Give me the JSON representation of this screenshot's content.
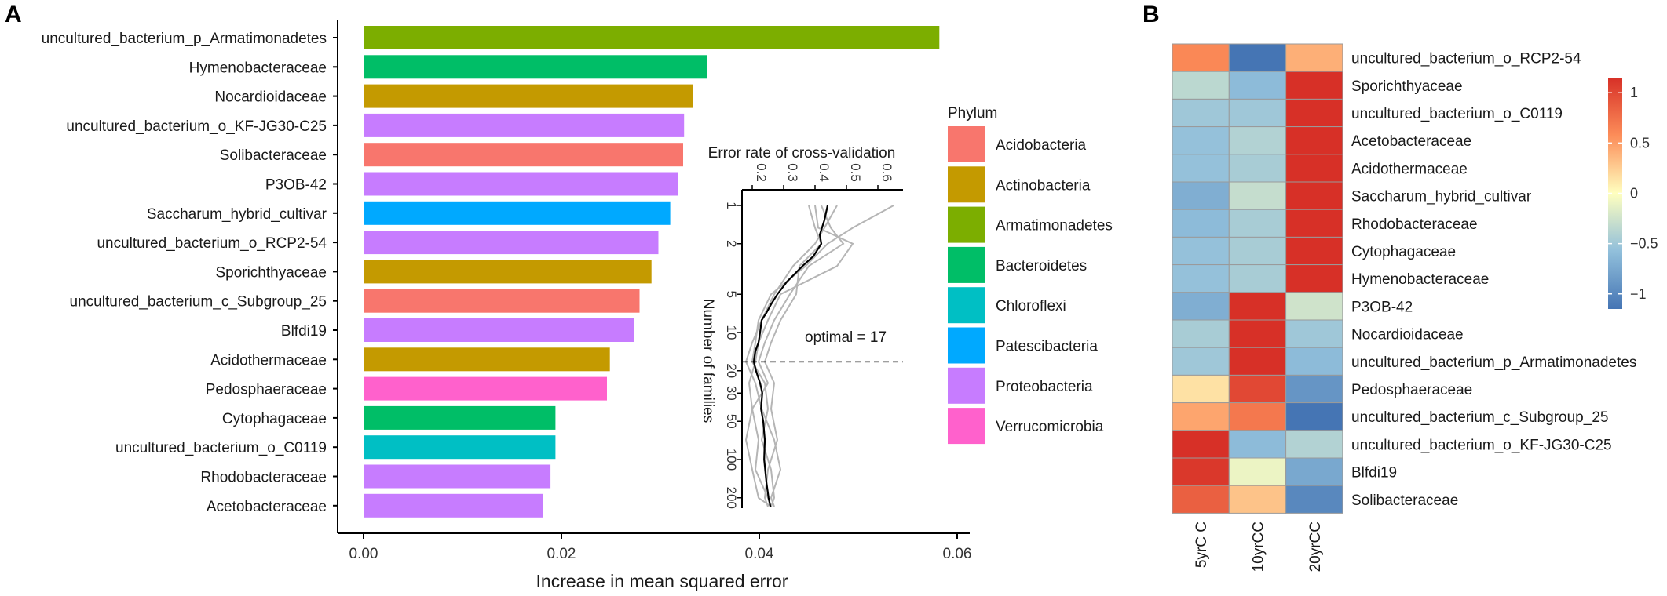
{
  "panel_a_label": "A",
  "panel_b_label": "B",
  "chart_data": [
    {
      "type": "bar",
      "orientation": "horizontal",
      "categories": [
        "uncultured_bacterium_p_Armatimonadetes",
        "Hymenobacteraceae",
        "Nocardioidaceae",
        "uncultured_bacterium_o_KF-JG30-C25",
        "Solibacteraceae",
        "P3OB-42",
        "Saccharum_hybrid_cultivar",
        "uncultured_bacterium_o_RCP2-54",
        "Sporichthyaceae",
        "uncultured_bacterium_c_Subgroup_25",
        "Blfdi19",
        "Acidothermaceae",
        "Pedosphaeraceae",
        "Cytophagaceae",
        "uncultured_bacterium_o_C0119",
        "Rhodobacteraceae",
        "Acetobacteraceae"
      ],
      "values": [
        0.0582,
        0.0347,
        0.0333,
        0.0324,
        0.0323,
        0.0318,
        0.031,
        0.0298,
        0.0291,
        0.0279,
        0.0273,
        0.0249,
        0.0246,
        0.0194,
        0.0194,
        0.0189,
        0.0181
      ],
      "phylum": [
        "Armatimonadetes",
        "Bacteroidetes",
        "Actinobacteria",
        "Proteobacteria",
        "Acidobacteria",
        "Proteobacteria",
        "Patescibacteria",
        "Proteobacteria",
        "Actinobacteria",
        "Acidobacteria",
        "Proteobacteria",
        "Actinobacteria",
        "Verrucomicrobia",
        "Bacteroidetes",
        "Chloroflexi",
        "Proteobacteria",
        "Proteobacteria"
      ],
      "xlabel": "Increase in mean squared error",
      "ylabel": "",
      "xlim": [
        -0.003,
        0.061
      ],
      "x_ticks": [
        "0.00",
        "0.02",
        "0.04",
        "0.06"
      ],
      "legend": {
        "title": "Phylum",
        "entries": [
          {
            "name": "Acidobacteria",
            "color": "#F8766D"
          },
          {
            "name": "Actinobacteria",
            "color": "#C49A00"
          },
          {
            "name": "Armatimonadetes",
            "color": "#7CAE00"
          },
          {
            "name": "Bacteroidetes",
            "color": "#00BE67"
          },
          {
            "name": "Chloroflexi",
            "color": "#00BFC4"
          },
          {
            "name": "Patescibacteria",
            "color": "#00A9FF"
          },
          {
            "name": "Proteobacteria",
            "color": "#C77CFF"
          },
          {
            "name": "Verrucomicrobia",
            "color": "#FF61CC"
          }
        ]
      }
    },
    {
      "type": "line",
      "title": "Error rate of cross-validation",
      "ylabel": "Number of families",
      "orientation": "rotated",
      "x_ticks": [
        "0.2",
        "0.3",
        "0.4",
        "0.5",
        "0.6"
      ],
      "y_ticks": [
        "1",
        "2",
        "5",
        "10",
        "20",
        "30",
        "50",
        "100",
        "200"
      ],
      "annotation": "optimal = 17",
      "optimal": 17,
      "mean_line": {
        "n": [
          1,
          1.3,
          1.7,
          2,
          2.5,
          3,
          4,
          5,
          6,
          7,
          8,
          10,
          12,
          14,
          17,
          20,
          25,
          30,
          40,
          50,
          70,
          100,
          150,
          200,
          235
        ],
        "error": [
          0.44,
          0.43,
          0.415,
          0.42,
          0.395,
          0.36,
          0.31,
          0.28,
          0.26,
          0.245,
          0.23,
          0.225,
          0.22,
          0.21,
          0.205,
          0.212,
          0.225,
          0.232,
          0.228,
          0.235,
          0.24,
          0.238,
          0.245,
          0.252,
          0.258
        ]
      },
      "gray_lines": [
        {
          "n": [
            1,
            1.5,
            2,
            3,
            5,
            8,
            12,
            17,
            25,
            40,
            70,
            120,
            200,
            235
          ],
          "error": [
            0.42,
            0.45,
            0.49,
            0.38,
            0.32,
            0.27,
            0.24,
            0.22,
            0.25,
            0.2,
            0.22,
            0.21,
            0.25,
            0.26
          ]
        },
        {
          "n": [
            1,
            1.5,
            2,
            3,
            5,
            8,
            12,
            17,
            25,
            40,
            70,
            120,
            200,
            235
          ],
          "error": [
            0.47,
            0.43,
            0.4,
            0.33,
            0.27,
            0.23,
            0.2,
            0.18,
            0.21,
            0.23,
            0.27,
            0.29,
            0.26,
            0.27
          ]
        },
        {
          "n": [
            1,
            1.5,
            2,
            3,
            5,
            8,
            12,
            17,
            25,
            40,
            70,
            120,
            200,
            235
          ],
          "error": [
            0.4,
            0.41,
            0.52,
            0.47,
            0.29,
            0.25,
            0.22,
            0.21,
            0.19,
            0.2,
            0.18,
            0.2,
            0.22,
            0.26
          ]
        },
        {
          "n": [
            1,
            1.5,
            2,
            3,
            5,
            8,
            12,
            17,
            25,
            40,
            70,
            120,
            200,
            235
          ],
          "error": [
            0.65,
            0.52,
            0.44,
            0.37,
            0.26,
            0.22,
            0.21,
            0.2,
            0.24,
            0.25,
            0.23,
            0.26,
            0.27,
            0.26
          ]
        },
        {
          "n": [
            1,
            1.5,
            2,
            3,
            5,
            8,
            12,
            17,
            25,
            40,
            70,
            120,
            200,
            235
          ],
          "error": [
            0.38,
            0.4,
            0.42,
            0.35,
            0.34,
            0.29,
            0.26,
            0.24,
            0.27,
            0.26,
            0.28,
            0.25,
            0.24,
            0.25
          ]
        }
      ]
    },
    {
      "type": "heatmap",
      "rows": [
        "uncultured_bacterium_o_RCP2-54",
        "Sporichthyaceae",
        "uncultured_bacterium_o_C0119",
        "Acetobacteraceae",
        "Acidothermaceae",
        "Saccharum_hybrid_cultivar",
        "Rhodobacteraceae",
        "Cytophagaceae",
        "Hymenobacteraceae",
        "P3OB-42",
        "Nocardioidaceae",
        "uncultured_bacterium_p_Armatimonadetes",
        "Pedosphaeraceae",
        "uncultured_bacterium_c_Subgroup_25",
        "uncultured_bacterium_o_KF-JG30-C25",
        "Blfdi19",
        "Solibacteraceae"
      ],
      "columns": [
        "5yrC C",
        "10yrCC",
        "20yrCC"
      ],
      "values": [
        [
          0.6,
          -1.15,
          0.4
        ],
        [
          -0.35,
          -0.6,
          1.15
        ],
        [
          -0.5,
          -0.5,
          1.15
        ],
        [
          -0.55,
          -0.4,
          1.15
        ],
        [
          -0.55,
          -0.45,
          1.15
        ],
        [
          -0.7,
          -0.3,
          1.15
        ],
        [
          -0.6,
          -0.45,
          1.15
        ],
        [
          -0.55,
          -0.45,
          1.15
        ],
        [
          -0.55,
          -0.45,
          1.15
        ],
        [
          -0.7,
          1.15,
          -0.25
        ],
        [
          -0.45,
          1.15,
          -0.5
        ],
        [
          -0.5,
          1.15,
          -0.6
        ],
        [
          0.15,
          1.0,
          -0.9
        ],
        [
          0.45,
          0.7,
          -1.15
        ],
        [
          1.15,
          -0.6,
          -0.4
        ],
        [
          1.1,
          -0.1,
          -0.75
        ],
        [
          0.85,
          0.3,
          -1.0
        ]
      ],
      "colorbar": {
        "ticks": [
          "1",
          "0.5",
          "0",
          "−0.5",
          "−1"
        ],
        "tick_values": [
          1,
          0.5,
          0,
          -0.5,
          -1
        ],
        "range": [
          -1.15,
          1.15
        ],
        "low_color": "#4575B4",
        "mid_color": "#FFFFBF",
        "high_color": "#D73027"
      }
    }
  ]
}
